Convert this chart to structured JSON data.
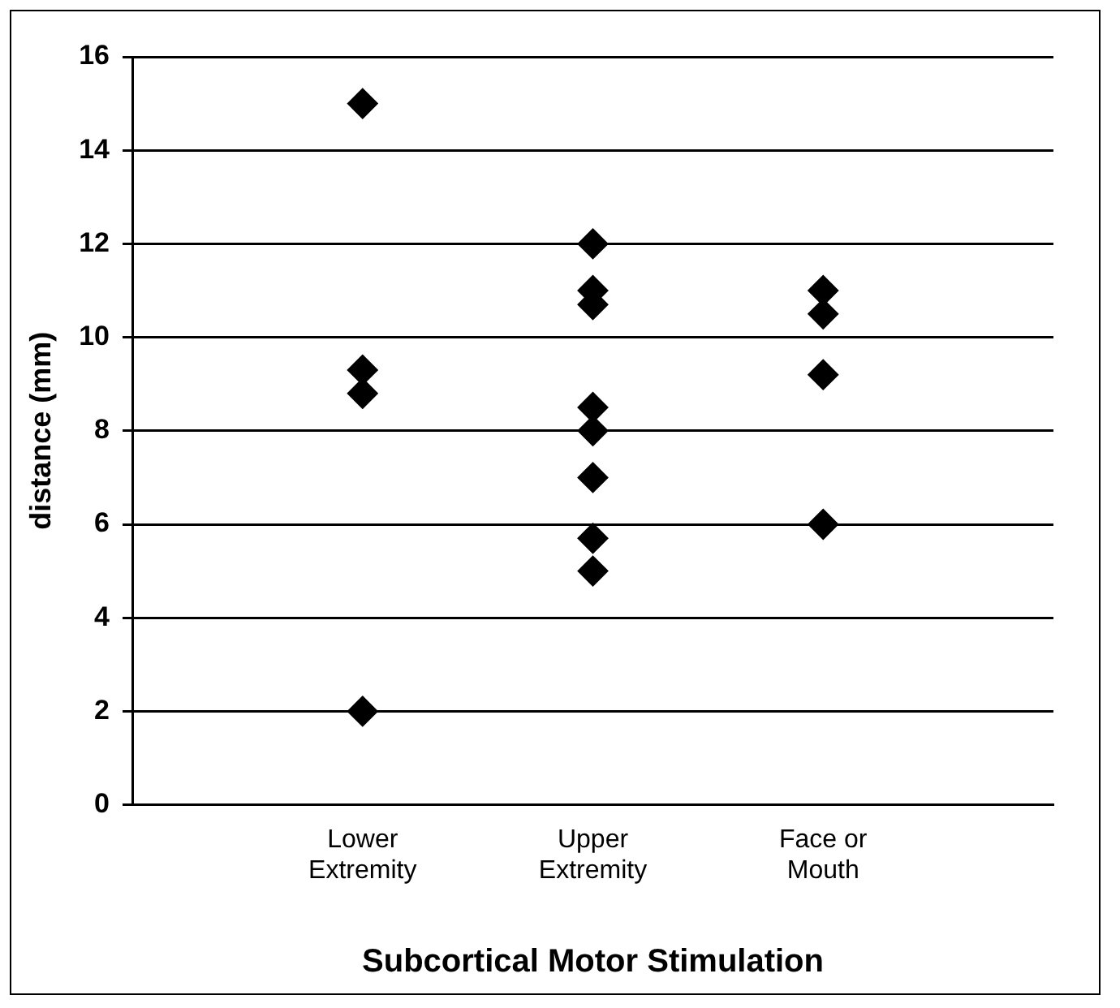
{
  "chart_data": {
    "type": "scatter",
    "xlabel": "Subcortical Motor Stimulation",
    "ylabel": "distance (mm)",
    "categories": [
      "Lower Extremity",
      "Upper Extremity",
      "Face or Mouth"
    ],
    "series": [
      {
        "color": "#000000",
        "x": [
          "Lower Extremity",
          "Lower Extremity",
          "Lower Extremity",
          "Lower Extremity",
          "Upper Extremity",
          "Upper Extremity",
          "Upper Extremity",
          "Upper Extremity",
          "Upper Extremity",
          "Upper Extremity",
          "Upper Extremity",
          "Upper Extremity",
          "Face or Mouth",
          "Face or Mouth",
          "Face or Mouth",
          "Face or Mouth"
        ],
        "values": [
          15,
          9.3,
          8.8,
          2,
          12,
          11,
          10.7,
          8.5,
          8,
          7,
          5.7,
          5,
          11,
          10.5,
          9.2,
          6
        ]
      }
    ],
    "ylim": [
      0,
      16
    ],
    "yticks": [
      0,
      2,
      4,
      6,
      8,
      10,
      12,
      14,
      16
    ],
    "grid": "y",
    "legend": false,
    "marker": "diamond"
  }
}
